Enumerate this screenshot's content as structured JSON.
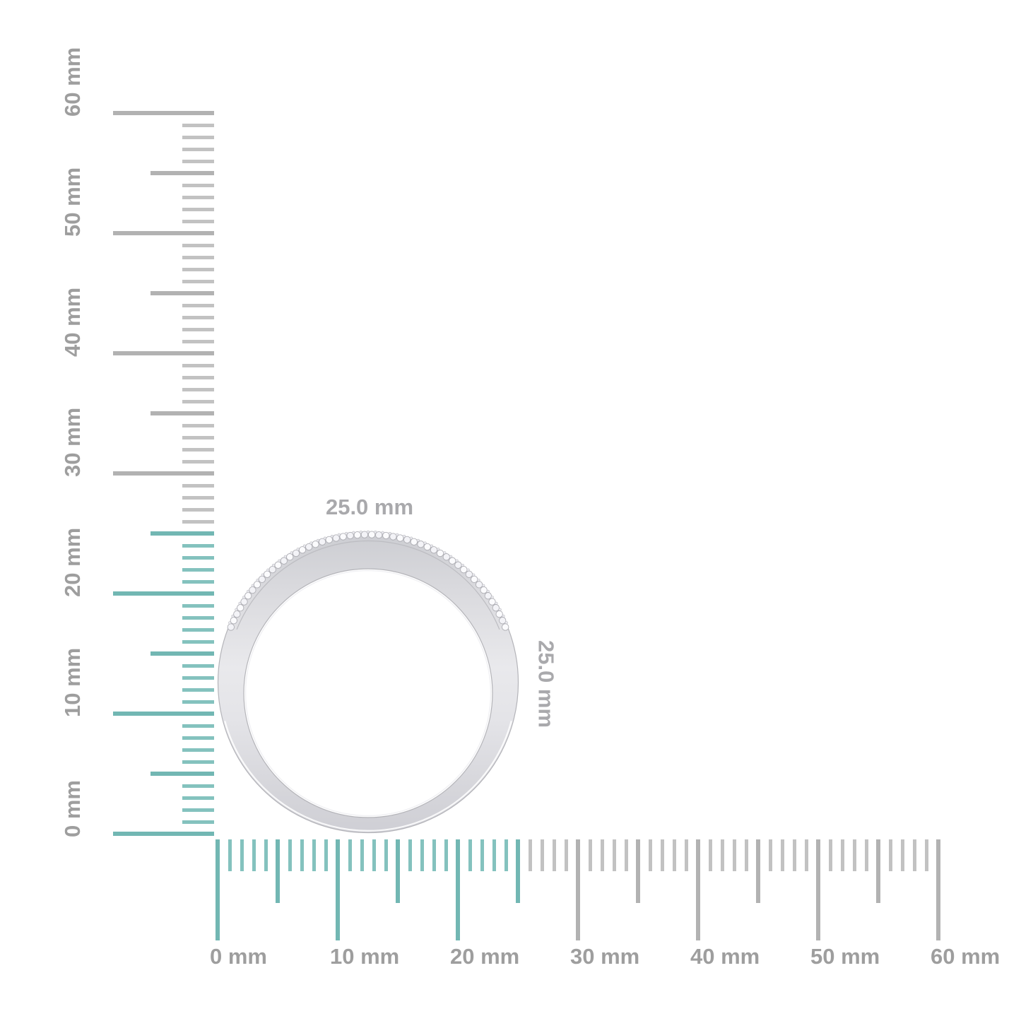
{
  "ring": {
    "width_label": "25.0 mm",
    "height_label": "25.0 mm"
  },
  "rulers": {
    "unit": "mm",
    "vertical": {
      "min_mm": 0,
      "max_mm": 60,
      "major_step_mm": 10,
      "highlight_until_mm": 25,
      "labels": [
        "0 mm",
        "10 mm",
        "20 mm",
        "30 mm",
        "40 mm",
        "50 mm",
        "60 mm"
      ]
    },
    "horizontal": {
      "min_mm": 0,
      "max_mm": 60,
      "major_step_mm": 10,
      "highlight_until_mm": 25,
      "labels": [
        "0 mm",
        "10 mm",
        "20 mm",
        "30 mm",
        "40 mm",
        "50 mm",
        "60 mm"
      ]
    },
    "colors": {
      "highlight_major": "#72b7b3",
      "highlight_minor": "#84c2be",
      "gray_major": "#b2b2b2",
      "gray_minor": "#c2c2c2",
      "label": "#9e9e9e",
      "dimension_label": "#a9a9ac"
    }
  }
}
